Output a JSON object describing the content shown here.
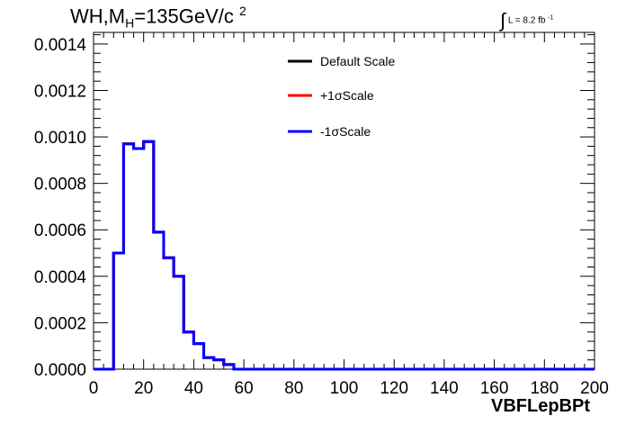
{
  "title": {
    "main": "WH,M",
    "sub": "H",
    "rest": "=135GeV/c",
    "sup": "2"
  },
  "lumi": {
    "prefix": "L = 8.2 fb",
    "sup": "-1"
  },
  "chart_data": {
    "type": "histogram",
    "xlabel": "VBFLepBPt",
    "ylabel": "",
    "xlim": [
      0,
      200
    ],
    "ylim": [
      0,
      0.00145
    ],
    "xticks": [
      0,
      20,
      40,
      60,
      80,
      100,
      120,
      140,
      160,
      180,
      200
    ],
    "yticks": [
      "0.0000",
      "0.0002",
      "0.0004",
      "0.0006",
      "0.0008",
      "0.0010",
      "0.0012",
      "0.0014"
    ],
    "ytick_values": [
      0,
      0.0002,
      0.0004,
      0.0006,
      0.0008,
      0.001,
      0.0012,
      0.0014
    ],
    "bin_edges": [
      0,
      4,
      8,
      12,
      16,
      20,
      24,
      28,
      32,
      36,
      40,
      44,
      48,
      52,
      56,
      60,
      64,
      68,
      72,
      76,
      80,
      84,
      88,
      92,
      96,
      100,
      104,
      108,
      112,
      116,
      120,
      124,
      128,
      132,
      136,
      140,
      144,
      148,
      152,
      156,
      160,
      164,
      168,
      172,
      176,
      180,
      184,
      188,
      192,
      196,
      200
    ],
    "legend_placement": "top-center",
    "series": [
      {
        "name": "Default Scale",
        "color": "#000000",
        "values": [
          0,
          0,
          0.0005,
          0.00097,
          0.00095,
          0.00098,
          0.00059,
          0.00048,
          0.0004,
          0.00016,
          0.00011,
          5e-05,
          4e-05,
          2e-05,
          0,
          0,
          0,
          0,
          0,
          0,
          0,
          0,
          0,
          0,
          0,
          0,
          0,
          0,
          0,
          0,
          0,
          0,
          0,
          0,
          0,
          0,
          0,
          0,
          0,
          0,
          0,
          0,
          0,
          0,
          0,
          0,
          0,
          0,
          0,
          0
        ]
      },
      {
        "name": "+1σScale",
        "color": "#ff0000",
        "values": [
          0,
          0,
          0.0005,
          0.00097,
          0.00095,
          0.00098,
          0.00059,
          0.00048,
          0.0004,
          0.00016,
          0.00011,
          5e-05,
          4e-05,
          2e-05,
          0,
          0,
          0,
          0,
          0,
          0,
          0,
          0,
          0,
          0,
          0,
          0,
          0,
          0,
          0,
          0,
          0,
          0,
          0,
          0,
          0,
          0,
          0,
          0,
          0,
          0,
          0,
          0,
          0,
          0,
          0,
          0,
          0,
          0,
          0,
          0
        ]
      },
      {
        "name": "-1σScale",
        "color": "#0000ff",
        "values": [
          0,
          0,
          0.0005,
          0.00097,
          0.00095,
          0.00098,
          0.00059,
          0.00048,
          0.0004,
          0.00016,
          0.00011,
          5e-05,
          4e-05,
          2e-05,
          0,
          0,
          0,
          0,
          0,
          0,
          0,
          0,
          0,
          0,
          0,
          0,
          0,
          0,
          0,
          0,
          0,
          0,
          0,
          0,
          0,
          0,
          0,
          0,
          0,
          0,
          0,
          0,
          0,
          0,
          0,
          0,
          0,
          0,
          0,
          0
        ]
      }
    ]
  }
}
